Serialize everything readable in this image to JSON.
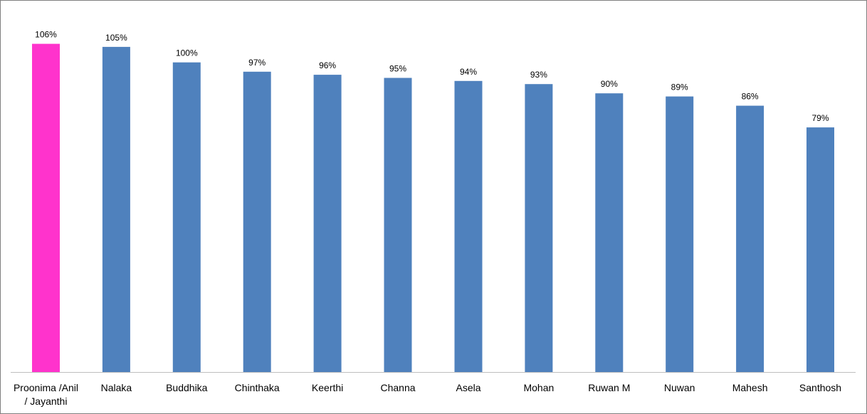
{
  "chart_data": {
    "type": "bar",
    "title": "",
    "xlabel": "",
    "ylabel": "",
    "categories": [
      [
        "Proonima /Anil",
        "/ Jayanthi"
      ],
      [
        "Nalaka"
      ],
      [
        "Buddhika"
      ],
      [
        "Chinthaka"
      ],
      [
        "Keerthi"
      ],
      [
        "Channa"
      ],
      [
        "Asela"
      ],
      [
        "Mohan"
      ],
      [
        "Ruwan M"
      ],
      [
        "Nuwan"
      ],
      [
        "Mahesh"
      ],
      [
        "Santhosh"
      ]
    ],
    "values": [
      106,
      105,
      100,
      97,
      96,
      95,
      94,
      93,
      90,
      89,
      86,
      79
    ],
    "value_labels": [
      "106%",
      "105%",
      "100%",
      "97%",
      "96%",
      "95%",
      "94%",
      "93%",
      "90%",
      "89%",
      "86%",
      "79%"
    ],
    "ylim": [
      0,
      119
    ],
    "grid": false,
    "legend": "none",
    "colors": {
      "default_bar": "#4f81bd",
      "highlight_bar": "#ff33cc",
      "axis": "#bfbfbf"
    },
    "highlight_index": 0
  }
}
